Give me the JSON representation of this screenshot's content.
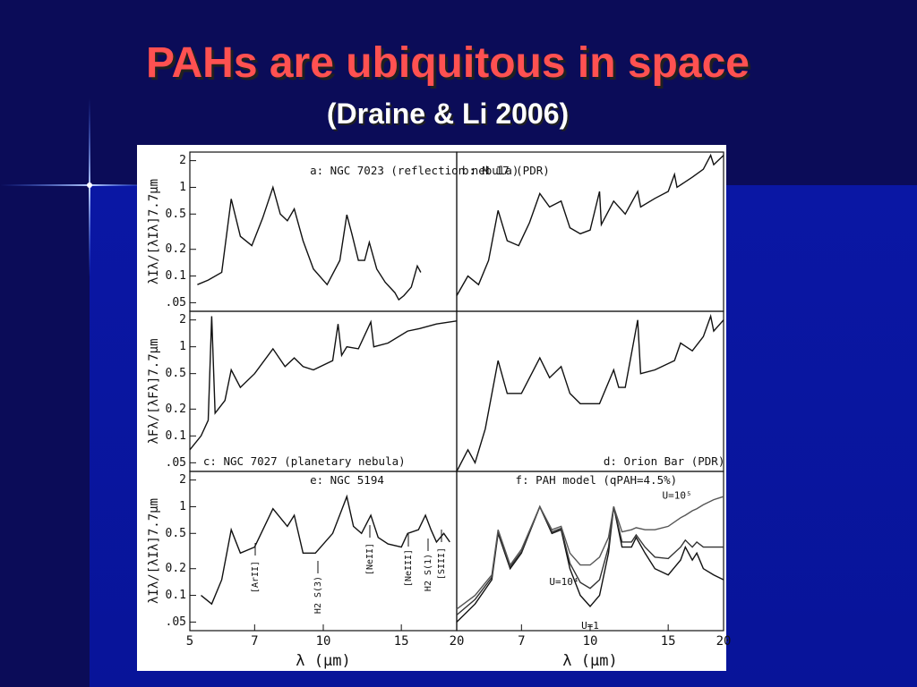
{
  "slide": {
    "title": "PAHs are ubiquitous in space",
    "subtitle": "(Draine & Li 2006)"
  },
  "chart_data": [
    {
      "type": "line",
      "title": "a: NGC 7023 (reflection nebula)",
      "ylabel": "λIλ/[λIλ]7.7μm",
      "log_x": true,
      "log_y": true,
      "xlim": [
        5,
        20
      ],
      "ylim": [
        0.04,
        2.5
      ],
      "yticks": [
        {
          "value": 0.05,
          "label": ".05"
        },
        0.1,
        0.2,
        0.5,
        1,
        2
      ],
      "x": [
        5.2,
        5.5,
        5.9,
        6.2,
        6.5,
        6.9,
        7.3,
        7.7,
        8.0,
        8.3,
        8.6,
        9.0,
        9.5,
        10.2,
        10.9,
        11.3,
        11.6,
        12.0,
        12.4,
        12.7,
        13.2,
        13.8,
        14.5,
        14.8,
        15.2,
        15.8,
        16.3,
        16.6
      ],
      "values": [
        0.08,
        0.09,
        0.11,
        0.74,
        0.28,
        0.22,
        0.45,
        1.0,
        0.5,
        0.42,
        0.57,
        0.25,
        0.12,
        0.08,
        0.15,
        0.49,
        0.3,
        0.15,
        0.15,
        0.24,
        0.12,
        0.085,
        0.065,
        0.054,
        0.06,
        0.075,
        0.13,
        0.11
      ]
    },
    {
      "type": "line",
      "title": "b: M 17 (PDR)",
      "log_x": true,
      "log_y": true,
      "xlim": [
        5,
        20
      ],
      "ylim": [
        0.04,
        2.5
      ],
      "x": [
        5.0,
        5.3,
        5.6,
        5.9,
        6.2,
        6.5,
        6.9,
        7.3,
        7.7,
        8.1,
        8.6,
        9.0,
        9.5,
        10.0,
        10.5,
        10.6,
        11.3,
        12.0,
        12.8,
        13.0,
        14.0,
        15.0,
        15.5,
        15.7,
        17.0,
        18.0,
        18.7,
        19.0,
        20.0
      ],
      "values": [
        0.06,
        0.1,
        0.08,
        0.15,
        0.55,
        0.25,
        0.22,
        0.4,
        0.85,
        0.6,
        0.7,
        0.35,
        0.3,
        0.33,
        0.9,
        0.38,
        0.7,
        0.5,
        0.9,
        0.6,
        0.75,
        0.9,
        1.4,
        1.0,
        1.3,
        1.6,
        2.3,
        1.8,
        2.3
      ]
    },
    {
      "type": "line",
      "title": "c: NGC 7027 (planetary nebula)",
      "ylabel": "λFλ/[λFλ]7.7μm",
      "log_x": true,
      "log_y": true,
      "xlim": [
        5,
        20
      ],
      "ylim": [
        0.04,
        2.5
      ],
      "yticks": [
        {
          "value": 0.05,
          "label": ".05"
        },
        0.1,
        0.2,
        0.5,
        1,
        2
      ],
      "x": [
        5.0,
        5.3,
        5.5,
        5.6,
        5.7,
        6.0,
        6.2,
        6.5,
        7.0,
        7.7,
        8.2,
        8.6,
        9.0,
        9.5,
        10.5,
        10.8,
        11.0,
        11.3,
        12.0,
        12.8,
        13.0,
        14.0,
        15.5,
        16.5,
        18.0,
        20.0
      ],
      "values": [
        0.07,
        0.1,
        0.15,
        2.2,
        0.18,
        0.25,
        0.55,
        0.35,
        0.5,
        0.95,
        0.6,
        0.75,
        0.6,
        0.55,
        0.7,
        1.8,
        0.8,
        1.0,
        0.95,
        1.9,
        1.0,
        1.1,
        1.5,
        1.6,
        1.8,
        1.95
      ]
    },
    {
      "type": "line",
      "title": "d: Orion Bar (PDR)",
      "log_x": true,
      "log_y": true,
      "xlim": [
        5,
        20
      ],
      "ylim": [
        0.04,
        2.5
      ],
      "x": [
        5.0,
        5.3,
        5.5,
        5.8,
        6.2,
        6.5,
        7.0,
        7.7,
        8.1,
        8.6,
        9.0,
        9.5,
        10.5,
        11.3,
        11.6,
        12.0,
        12.8,
        13.0,
        14.0,
        15.5,
        16.0,
        17.0,
        18.0,
        18.7,
        19.0,
        20.0
      ],
      "values": [
        0.04,
        0.07,
        0.05,
        0.12,
        0.7,
        0.3,
        0.3,
        0.75,
        0.45,
        0.6,
        0.3,
        0.23,
        0.23,
        0.55,
        0.35,
        0.35,
        2.0,
        0.5,
        0.55,
        0.7,
        1.1,
        0.9,
        1.3,
        2.2,
        1.5,
        2.0
      ]
    },
    {
      "type": "line",
      "title": "e: NGC 5194",
      "ylabel": "λIλ/[λIλ]7.7μm",
      "xlabel": "λ (μm)",
      "log_x": true,
      "log_y": true,
      "xlim": [
        5,
        20
      ],
      "ylim": [
        0.04,
        2.5
      ],
      "yticks": [
        {
          "value": 0.05,
          "label": ".05"
        },
        0.1,
        0.2,
        0.5,
        1,
        2
      ],
      "xticks": [
        5,
        7,
        10,
        15,
        20
      ],
      "annotations": [
        "[ArII]",
        "H2 S(3)",
        "[NeII]",
        "[NeIII]",
        "H2 S(1)",
        "[SIII]"
      ],
      "x": [
        5.3,
        5.6,
        5.9,
        6.2,
        6.5,
        7.0,
        7.7,
        8.3,
        8.6,
        9.0,
        9.6,
        10.5,
        11.3,
        11.7,
        12.2,
        12.8,
        13.3,
        14.0,
        15.0,
        15.5,
        16.4,
        17.0,
        17.5,
        18.0,
        18.7,
        19.3
      ],
      "values": [
        0.1,
        0.08,
        0.15,
        0.55,
        0.3,
        0.35,
        0.95,
        0.6,
        0.8,
        0.3,
        0.3,
        0.5,
        1.3,
        0.6,
        0.5,
        0.8,
        0.45,
        0.38,
        0.35,
        0.5,
        0.55,
        0.8,
        0.55,
        0.4,
        0.5,
        0.4
      ]
    },
    {
      "type": "line",
      "title": "f: PAH model (qPAH=4.5%)",
      "xlabel": "λ (μm)",
      "log_x": true,
      "log_y": true,
      "xlim": [
        5,
        20
      ],
      "ylim": [
        0.04,
        2.5
      ],
      "xticks": [
        7,
        10,
        15,
        20
      ],
      "x": [
        5.0,
        5.5,
        6.0,
        6.2,
        6.6,
        7.0,
        7.7,
        8.2,
        8.6,
        9.0,
        9.5,
        10.0,
        10.5,
        11.0,
        11.3,
        11.8,
        12.4,
        12.7,
        13.3,
        14.0,
        15.0,
        16.0,
        16.4,
        17.0,
        17.4,
        18.0,
        19.0,
        20.0
      ],
      "series": [
        {
          "name": "U=1",
          "color": "#111111",
          "values": [
            0.05,
            0.08,
            0.15,
            0.5,
            0.2,
            0.3,
            1.0,
            0.5,
            0.55,
            0.2,
            0.1,
            0.075,
            0.1,
            0.3,
            1.0,
            0.35,
            0.35,
            0.45,
            0.3,
            0.2,
            0.17,
            0.25,
            0.35,
            0.25,
            0.3,
            0.2,
            0.17,
            0.15
          ]
        },
        {
          "name": "U=10⁴",
          "color": "#333333",
          "values": [
            0.06,
            0.09,
            0.16,
            0.52,
            0.21,
            0.31,
            1.0,
            0.52,
            0.57,
            0.23,
            0.14,
            0.12,
            0.15,
            0.35,
            1.0,
            0.4,
            0.4,
            0.48,
            0.35,
            0.27,
            0.26,
            0.35,
            0.42,
            0.35,
            0.4,
            0.35,
            0.35,
            0.35
          ]
        },
        {
          "name": "U=10⁵",
          "color": "#555555",
          "values": [
            0.07,
            0.1,
            0.17,
            0.55,
            0.22,
            0.33,
            1.0,
            0.55,
            0.6,
            0.3,
            0.22,
            0.22,
            0.27,
            0.45,
            1.0,
            0.52,
            0.55,
            0.58,
            0.55,
            0.55,
            0.6,
            0.75,
            0.8,
            0.9,
            0.95,
            1.05,
            1.2,
            1.3
          ]
        }
      ]
    }
  ]
}
